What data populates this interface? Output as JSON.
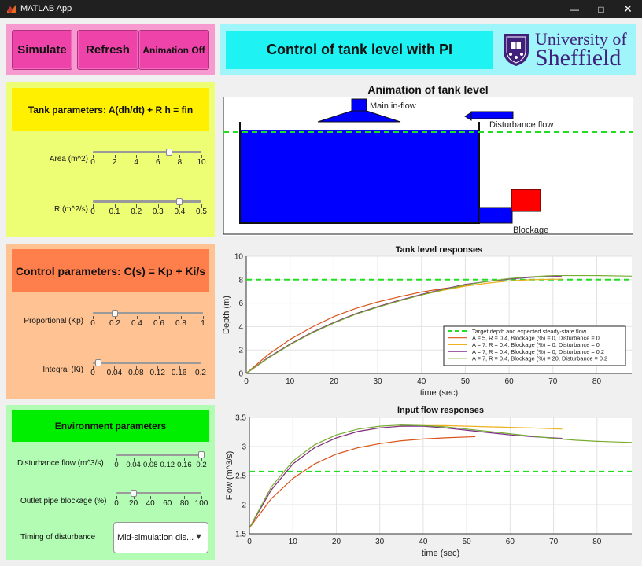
{
  "window": {
    "title": "MATLAB App"
  },
  "buttons": {
    "simulate": "Simulate",
    "refresh": "Refresh",
    "animation": "Animation Off"
  },
  "header": {
    "title": "Control of tank level with PI",
    "logo_university": "University",
    "logo_of": "of",
    "logo_city": "Sheffield"
  },
  "tank_params": {
    "title": "Tank parameters: A(dh/dt) + R h =  fin",
    "area": {
      "label": "Area (m^2)",
      "ticks": [
        "0",
        "2",
        "4",
        "6",
        "8",
        "10"
      ],
      "value": 7,
      "min": 0,
      "max": 10
    },
    "r": {
      "label": "R (m^2/s)",
      "ticks": [
        "0",
        "0.1",
        "0.2",
        "0.3",
        "0.4",
        "0.5"
      ],
      "value": 0.4,
      "min": 0,
      "max": 0.5
    }
  },
  "control_params": {
    "title": "Control parameters: C(s) = Kp + Ki/s",
    "kp": {
      "label": "Proportional (Kp)",
      "ticks": [
        "0",
        "0.2",
        "0.4",
        "0.6",
        "0.8",
        "1"
      ],
      "value": 0.2,
      "min": 0,
      "max": 1
    },
    "ki": {
      "label": "Integral (Ki)",
      "ticks": [
        "0",
        "0.04",
        "0.08",
        "0.12",
        "0.16",
        "0.2"
      ],
      "value": 0.01,
      "min": 0,
      "max": 0.2
    }
  },
  "env_params": {
    "title": "Environment parameters",
    "disturbance": {
      "label": "Disturbance flow (m^3/s)",
      "ticks": [
        "0",
        "0.04",
        "0.08",
        "0.12",
        "0.16",
        "0.2"
      ],
      "value": 0.2,
      "min": 0,
      "max": 0.2
    },
    "blockage": {
      "label": "Outlet pipe blockage (%)",
      "ticks": [
        "0",
        "20",
        "40",
        "60",
        "80",
        "100"
      ],
      "value": 20,
      "min": 0,
      "max": 100
    },
    "timing": {
      "label": "Timing of disturbance",
      "selected": "Mid-simulation dis..."
    }
  },
  "animation": {
    "title": "Animation of tank level",
    "main_inflow_label": "Main in-flow",
    "disturbance_label": "Disturbance flow",
    "blockage_label": "Blockage",
    "colors": {
      "water": "#0000ff",
      "target": "#22dd22",
      "blockage": "#ff0000"
    }
  },
  "chart_data": [
    {
      "type": "line",
      "title": "Tank level responses",
      "xlabel": "time (sec)",
      "ylabel": "Depth (m)",
      "xlim": [
        0,
        88
      ],
      "ylim": [
        0,
        10
      ],
      "xticks": [
        0,
        10,
        20,
        30,
        40,
        50,
        60,
        70,
        80
      ],
      "yticks": [
        0,
        2,
        4,
        6,
        8,
        10
      ],
      "grid": true,
      "legend_position": "bottom-right",
      "target": {
        "name": "Target depth and expected steady-state flow",
        "value": 8,
        "color": "#22dd22"
      },
      "series": [
        {
          "name": "A = 5, R = 0.4, Blockage (%) = 0, Disturbance = 0",
          "color": "#d95319",
          "x": [
            0,
            5,
            10,
            15,
            20,
            25,
            30,
            35,
            40,
            45,
            52
          ],
          "y": [
            0,
            1.6,
            2.9,
            3.95,
            4.85,
            5.55,
            6.1,
            6.55,
            6.95,
            7.25,
            7.55
          ]
        },
        {
          "name": "A = 7, R = 0.4, Blockage (%) = 0, Disturbance = 0",
          "color": "#edb120",
          "x": [
            0,
            5,
            10,
            15,
            20,
            25,
            30,
            35,
            40,
            45,
            50,
            55,
            60,
            65,
            72
          ],
          "y": [
            0,
            1.35,
            2.5,
            3.5,
            4.35,
            5.1,
            5.7,
            6.25,
            6.7,
            7.1,
            7.45,
            7.7,
            7.9,
            8.0,
            8.05
          ]
        },
        {
          "name": "A = 7, R = 0.4, Blockage (%) = 0, Disturbance = 0.2",
          "color": "#7e2f8e",
          "x": [
            0,
            5,
            10,
            15,
            20,
            25,
            30,
            35,
            40,
            45,
            50,
            55,
            60,
            65,
            72
          ],
          "y": [
            0,
            1.35,
            2.5,
            3.5,
            4.35,
            5.1,
            5.7,
            6.25,
            6.75,
            7.2,
            7.6,
            7.85,
            8.05,
            8.2,
            8.3
          ]
        },
        {
          "name": "A = 7, R = 0.4, Blockage (%) = 20, Disturbance = 0.2",
          "color": "#77ac30",
          "x": [
            0,
            5,
            10,
            15,
            20,
            25,
            30,
            35,
            40,
            45,
            50,
            55,
            60,
            65,
            70,
            75,
            80,
            88
          ],
          "y": [
            0,
            1.3,
            2.45,
            3.45,
            4.3,
            5.05,
            5.65,
            6.2,
            6.7,
            7.15,
            7.55,
            7.85,
            8.1,
            8.25,
            8.35,
            8.35,
            8.35,
            8.3
          ]
        }
      ]
    },
    {
      "type": "line",
      "title": "Input flow responses",
      "xlabel": "time (sec)",
      "ylabel": "Flow (m^3/s)",
      "xlim": [
        0,
        88
      ],
      "ylim": [
        1.5,
        3.5
      ],
      "xticks": [
        0,
        10,
        20,
        30,
        40,
        50,
        60,
        70,
        80
      ],
      "yticks": [
        1.5,
        2,
        2.5,
        3,
        3.5
      ],
      "grid": true,
      "target": {
        "value": 2.57,
        "color": "#22dd22"
      },
      "series": [
        {
          "name": "A = 5, R = 0.4, Blockage (%) = 0, Disturbance = 0",
          "color": "#d95319",
          "x": [
            0,
            5,
            10,
            15,
            20,
            25,
            30,
            35,
            40,
            45,
            52
          ],
          "y": [
            1.6,
            2.1,
            2.45,
            2.7,
            2.87,
            2.98,
            3.05,
            3.1,
            3.13,
            3.15,
            3.17
          ]
        },
        {
          "name": "A = 7, R = 0.4, Blockage (%) = 0, Disturbance = 0",
          "color": "#edb120",
          "x": [
            0,
            5,
            10,
            15,
            20,
            25,
            30,
            35,
            40,
            45,
            50,
            55,
            60,
            65,
            72
          ],
          "y": [
            1.6,
            2.25,
            2.7,
            2.98,
            3.15,
            3.26,
            3.32,
            3.35,
            3.36,
            3.36,
            3.35,
            3.34,
            3.33,
            3.32,
            3.3
          ]
        },
        {
          "name": "A = 7, R = 0.4, Blockage (%) = 0, Disturbance = 0.2",
          "color": "#7e2f8e",
          "x": [
            0,
            5,
            10,
            15,
            20,
            25,
            30,
            35,
            40,
            45,
            50,
            55,
            60,
            65,
            72
          ],
          "y": [
            1.6,
            2.25,
            2.7,
            2.98,
            3.15,
            3.26,
            3.32,
            3.35,
            3.35,
            3.32,
            3.28,
            3.24,
            3.2,
            3.17,
            3.14
          ]
        },
        {
          "name": "A = 7, R = 0.4, Blockage (%) = 20, Disturbance = 0.2",
          "color": "#77ac30",
          "x": [
            0,
            5,
            10,
            15,
            20,
            25,
            30,
            35,
            40,
            45,
            50,
            55,
            60,
            65,
            70,
            75,
            80,
            88
          ],
          "y": [
            1.6,
            2.3,
            2.75,
            3.03,
            3.2,
            3.3,
            3.35,
            3.37,
            3.36,
            3.34,
            3.3,
            3.26,
            3.22,
            3.18,
            3.14,
            3.11,
            3.09,
            3.07
          ]
        }
      ]
    }
  ]
}
